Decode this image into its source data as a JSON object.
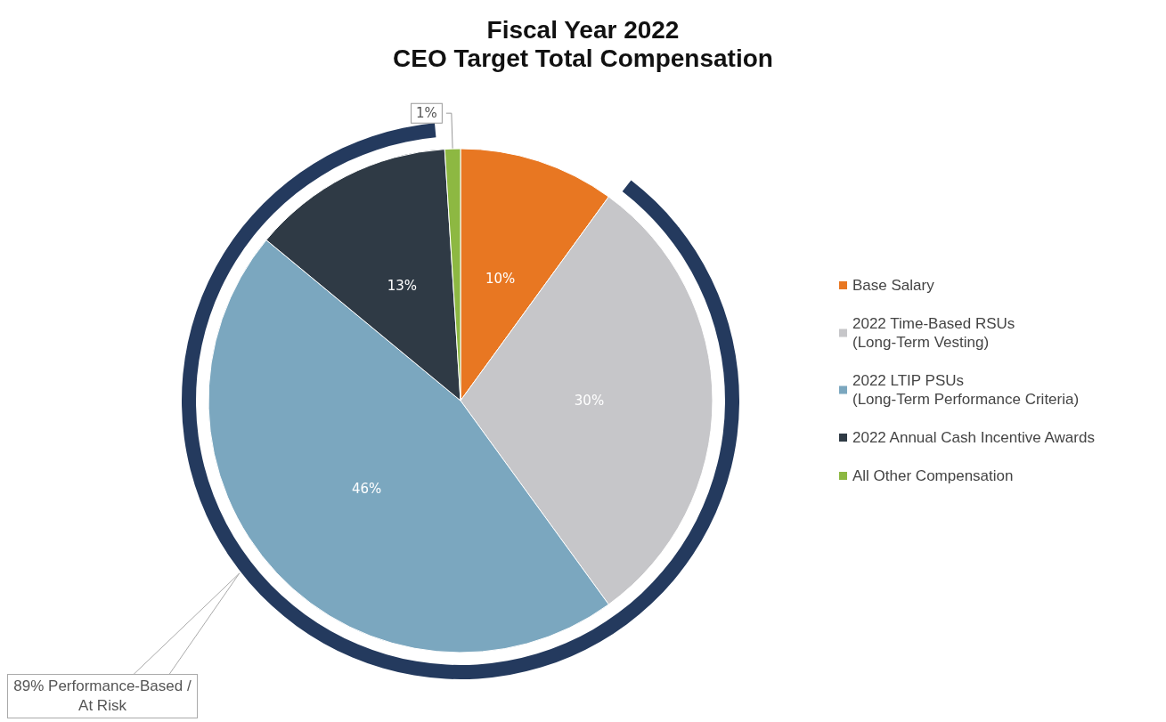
{
  "chart_data": {
    "type": "pie",
    "title": "Fiscal Year 2022",
    "subtitle": "CEO Target Total Compensation",
    "categories": [
      "Base Salary",
      "2022 Time-Based RSUs\n(Long-Term Vesting)",
      "2022 LTIP PSUs\n(Long-Term Performance Criteria)",
      "2022 Annual Cash Incentive Awards",
      "All Other Compensation"
    ],
    "values": [
      10,
      30,
      46,
      13,
      1
    ],
    "colors": [
      "#e87722",
      "#c6c6c9",
      "#7ba7bf",
      "#2f3a45",
      "#8db842"
    ],
    "value_labels": [
      "10%",
      "30%",
      "46%",
      "13%",
      "1%"
    ],
    "legend": "right",
    "annotations": [
      "89% Performance-Based / At Risk"
    ]
  }
}
